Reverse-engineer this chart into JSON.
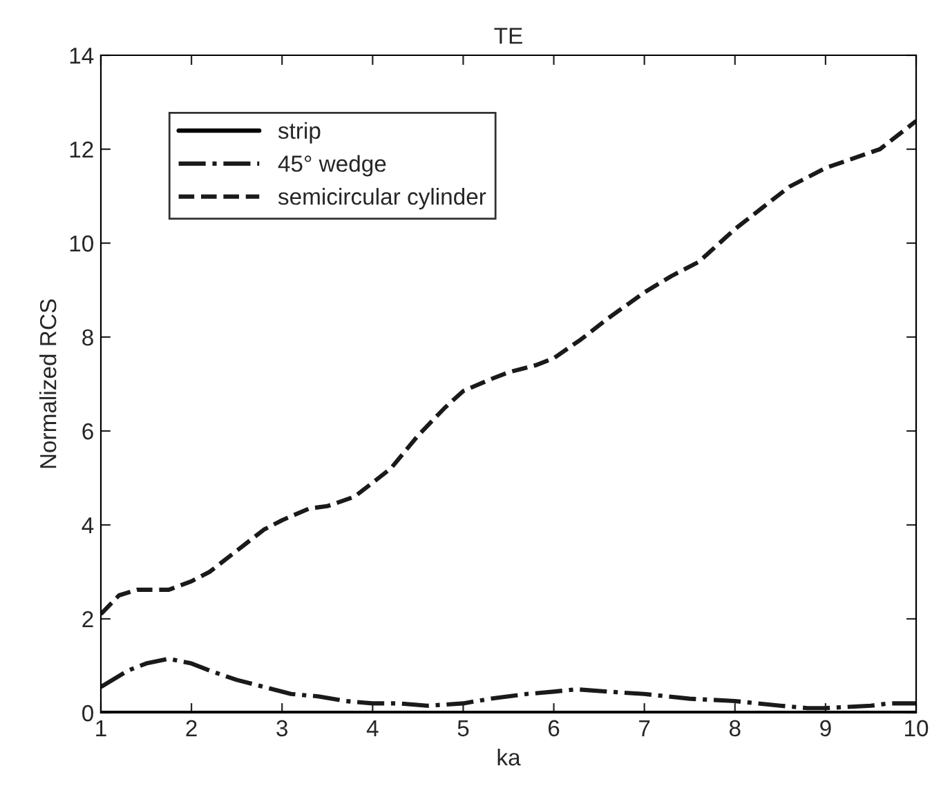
{
  "chart_data": {
    "type": "line",
    "title": "TE",
    "xlabel": "ka",
    "ylabel": "Normalized RCS",
    "xlim": [
      1,
      10
    ],
    "xticks": [
      1,
      2,
      3,
      4,
      5,
      6,
      7,
      8,
      9,
      10
    ],
    "ylim": [
      0,
      14
    ],
    "yticks": [
      0,
      2,
      4,
      6,
      8,
      10,
      12,
      14
    ],
    "grid": false,
    "legend": "top left",
    "series": [
      {
        "name": "strip",
        "color": "#000000",
        "line_style": "solid",
        "x": [
          1,
          10
        ],
        "values": [
          0,
          0
        ]
      },
      {
        "name": "45° wedge",
        "color": "#1a1a1a",
        "line_style": "dashdot",
        "x": [
          1,
          1.3,
          1.5,
          1.75,
          2,
          2.2,
          2.5,
          2.8,
          3.1,
          3.4,
          3.7,
          4,
          4.3,
          4.6,
          5,
          5.3,
          5.7,
          6,
          6.25,
          6.6,
          7,
          7.5,
          8,
          8.5,
          8.8,
          9,
          9.5,
          9.7,
          10
        ],
        "values": [
          0.55,
          0.9,
          1.05,
          1.15,
          1.05,
          0.9,
          0.7,
          0.55,
          0.4,
          0.35,
          0.25,
          0.2,
          0.2,
          0.15,
          0.2,
          0.3,
          0.4,
          0.45,
          0.5,
          0.45,
          0.4,
          0.3,
          0.25,
          0.15,
          0.1,
          0.1,
          0.15,
          0.2,
          0.2
        ]
      },
      {
        "name": "semicircular cylinder",
        "color": "#1a1a1a",
        "line_style": "dashed",
        "x": [
          1,
          1.2,
          1.4,
          1.75,
          2,
          2.2,
          2.5,
          2.8,
          3,
          3.3,
          3.5,
          3.8,
          4,
          4.2,
          4.5,
          4.8,
          5,
          5.3,
          5.5,
          5.8,
          6,
          6.3,
          6.6,
          7,
          7.3,
          7.6,
          8,
          8.3,
          8.6,
          9,
          9.3,
          9.6,
          10
        ],
        "values": [
          2.1,
          2.5,
          2.62,
          2.62,
          2.8,
          3.0,
          3.45,
          3.9,
          4.1,
          4.35,
          4.4,
          4.6,
          4.9,
          5.2,
          5.9,
          6.5,
          6.85,
          7.1,
          7.25,
          7.4,
          7.55,
          7.95,
          8.4,
          8.95,
          9.3,
          9.6,
          10.3,
          10.75,
          11.2,
          11.6,
          11.8,
          12.0,
          12.6
        ]
      }
    ]
  }
}
